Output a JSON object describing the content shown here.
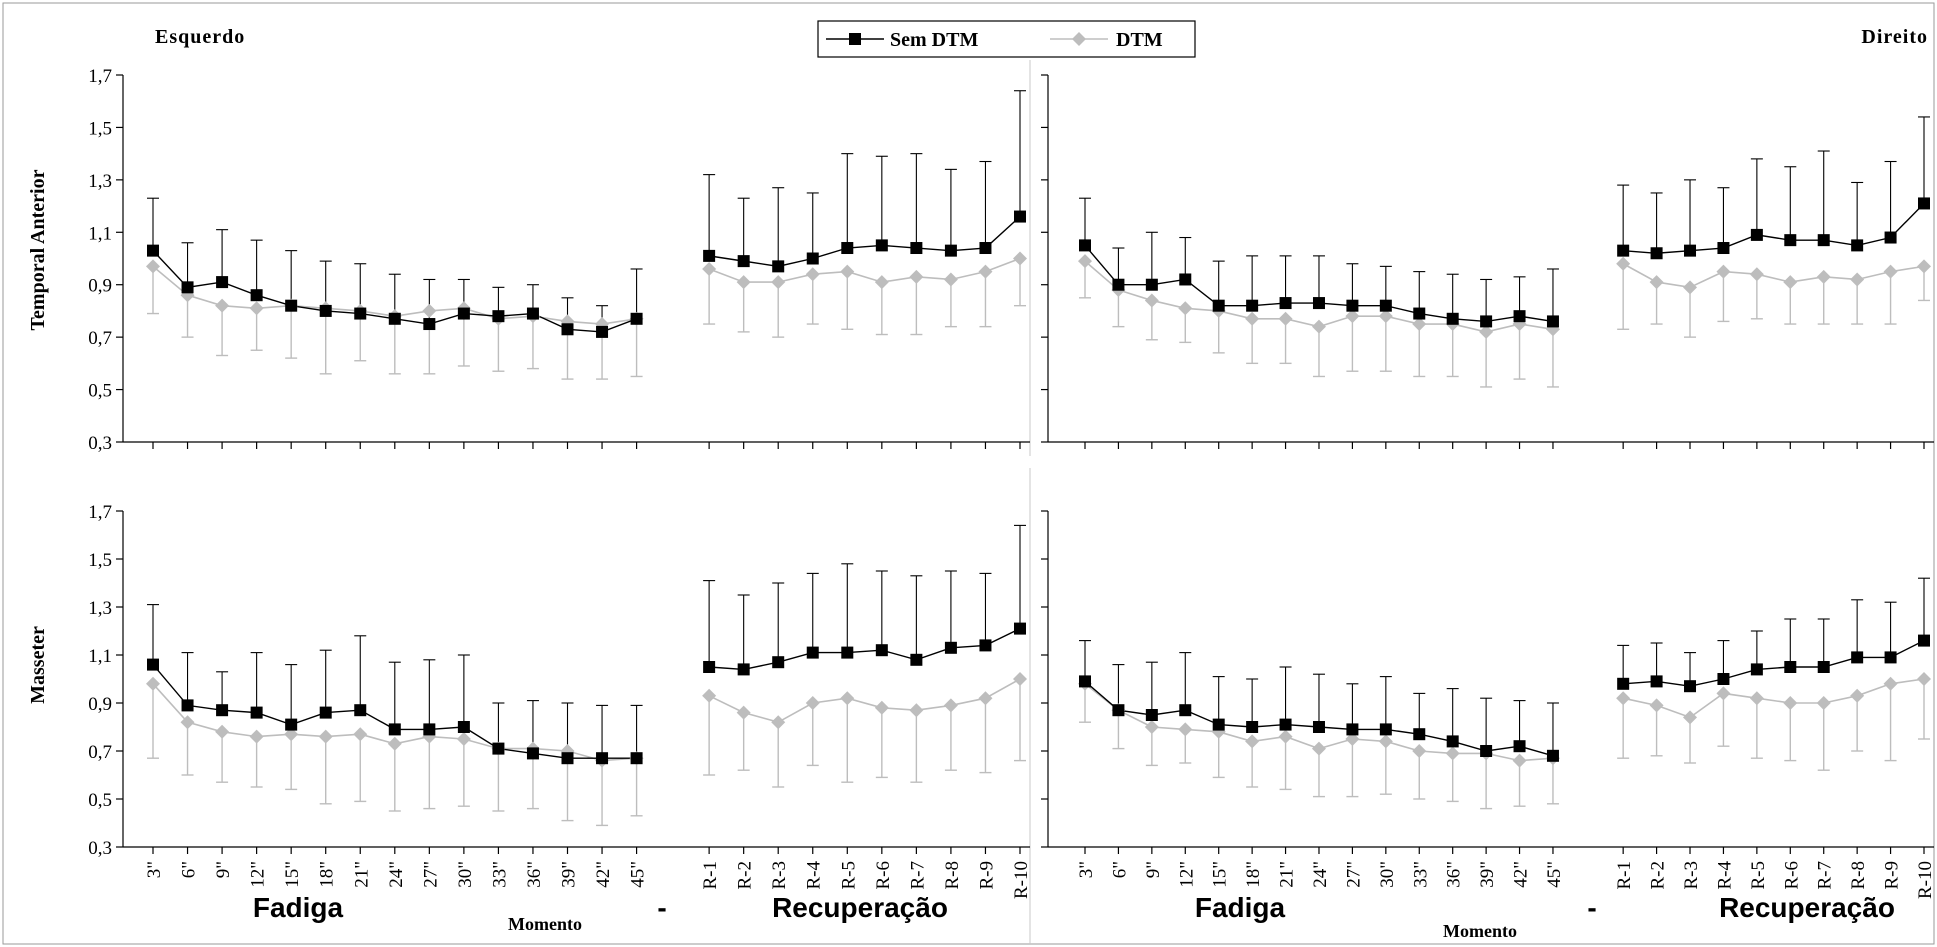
{
  "legend": [
    {
      "label": "Sem DTM"
    },
    {
      "label": "DTM"
    }
  ],
  "side_labels": {
    "left": "Esquerdo",
    "right": "Direito"
  },
  "row_labels": [
    "Temporal Anterior",
    "Masseter"
  ],
  "x_axis_title": "Momento",
  "section_labels": {
    "fatigue": "Fadiga",
    "separator": "-",
    "recovery": "Recuperação"
  },
  "colors": {
    "sem_dtm": "#000000",
    "dtm": "#bdbdbd"
  },
  "chart_data": [
    {
      "type": "line",
      "panel": "Esquerdo - Temporal Anterior",
      "ylabel": "Temporal Anterior",
      "ylim": [
        0.3,
        1.7
      ],
      "yticks": [
        "0,3",
        "0,5",
        "0,7",
        "0,9",
        "1,1",
        "1,3",
        "1,5",
        "1,7"
      ],
      "categories": [
        "3\"",
        "6\"",
        "9\"",
        "12\"",
        "15\"",
        "18\"",
        "21\"",
        "24\"",
        "27\"",
        "30\"",
        "33\"",
        "36\"",
        "39\"",
        "42\"",
        "45\"",
        "R-1",
        "R-2",
        "R-3",
        "R-4",
        "R-5",
        "R-6",
        "R-7",
        "R-8",
        "R-9",
        "R-10"
      ],
      "show_tick_labels": false,
      "series": [
        {
          "name": "Sem DTM",
          "values": [
            1.03,
            0.89,
            0.91,
            0.86,
            0.82,
            0.8,
            0.79,
            0.77,
            0.75,
            0.79,
            0.78,
            0.79,
            0.73,
            0.72,
            0.77,
            1.01,
            0.99,
            0.97,
            1.0,
            1.04,
            1.05,
            1.04,
            1.03,
            1.04,
            1.16
          ],
          "upper": [
            1.23,
            1.06,
            1.11,
            1.07,
            1.03,
            0.99,
            0.98,
            0.94,
            0.92,
            0.92,
            0.89,
            0.9,
            0.85,
            0.82,
            0.96,
            1.32,
            1.23,
            1.27,
            1.25,
            1.4,
            1.39,
            1.4,
            1.34,
            1.37,
            1.64
          ]
        },
        {
          "name": "DTM",
          "values": [
            0.97,
            0.86,
            0.82,
            0.81,
            0.82,
            0.81,
            0.8,
            0.78,
            0.8,
            0.81,
            0.77,
            0.78,
            0.76,
            0.75,
            0.77,
            0.96,
            0.91,
            0.91,
            0.94,
            0.95,
            0.91,
            0.93,
            0.92,
            0.95,
            1.0
          ],
          "lower": [
            0.79,
            0.7,
            0.63,
            0.65,
            0.62,
            0.56,
            0.61,
            0.56,
            0.56,
            0.59,
            0.57,
            0.58,
            0.54,
            0.54,
            0.55,
            0.75,
            0.72,
            0.7,
            0.75,
            0.73,
            0.71,
            0.71,
            0.74,
            0.74,
            0.82
          ]
        }
      ]
    },
    {
      "type": "line",
      "panel": "Direito - Temporal Anterior",
      "ylim": [
        0.3,
        1.7
      ],
      "categories": [
        "3\"",
        "6\"",
        "9\"",
        "12\"",
        "15\"",
        "18\"",
        "21\"",
        "24\"",
        "27\"",
        "30\"",
        "33\"",
        "36\"",
        "39\"",
        "42\"",
        "45\"",
        "R-1",
        "R-2",
        "R-3",
        "R-4",
        "R-5",
        "R-6",
        "R-7",
        "R-8",
        "R-9",
        "R-10"
      ],
      "show_tick_labels": false,
      "series": [
        {
          "name": "Sem DTM",
          "values": [
            1.05,
            0.9,
            0.9,
            0.92,
            0.82,
            0.82,
            0.83,
            0.83,
            0.82,
            0.82,
            0.79,
            0.77,
            0.76,
            0.78,
            0.76,
            1.03,
            1.02,
            1.03,
            1.04,
            1.09,
            1.07,
            1.07,
            1.05,
            1.08,
            1.21
          ],
          "upper": [
            1.23,
            1.04,
            1.1,
            1.08,
            0.99,
            1.01,
            1.01,
            1.01,
            0.98,
            0.97,
            0.95,
            0.94,
            0.92,
            0.93,
            0.96,
            1.28,
            1.25,
            1.3,
            1.27,
            1.38,
            1.35,
            1.41,
            1.29,
            1.37,
            1.54
          ]
        },
        {
          "name": "DTM",
          "values": [
            0.99,
            0.88,
            0.84,
            0.81,
            0.8,
            0.77,
            0.77,
            0.74,
            0.78,
            0.78,
            0.75,
            0.75,
            0.72,
            0.75,
            0.73,
            0.98,
            0.91,
            0.89,
            0.95,
            0.94,
            0.91,
            0.93,
            0.92,
            0.95,
            0.97
          ],
          "lower": [
            0.85,
            0.74,
            0.69,
            0.68,
            0.64,
            0.6,
            0.6,
            0.55,
            0.57,
            0.57,
            0.55,
            0.55,
            0.51,
            0.54,
            0.51,
            0.73,
            0.75,
            0.7,
            0.76,
            0.77,
            0.75,
            0.75,
            0.75,
            0.75,
            0.84
          ]
        }
      ]
    },
    {
      "type": "line",
      "panel": "Esquerdo - Masseter",
      "ylabel": "Masseter",
      "ylim": [
        0.3,
        1.7
      ],
      "yticks": [
        "0,3",
        "0,5",
        "0,7",
        "0,9",
        "1,1",
        "1,3",
        "1,5",
        "1,7"
      ],
      "categories": [
        "3\"",
        "6\"",
        "9\"",
        "12\"",
        "15\"",
        "18\"",
        "21\"",
        "24\"",
        "27\"",
        "30\"",
        "33\"",
        "36\"",
        "39\"",
        "42\"",
        "45\"",
        "R-1",
        "R-2",
        "R-3",
        "R-4",
        "R-5",
        "R-6",
        "R-7",
        "R-8",
        "R-9",
        "R-10"
      ],
      "show_tick_labels": true,
      "series": [
        {
          "name": "Sem DTM",
          "values": [
            1.06,
            0.89,
            0.87,
            0.86,
            0.81,
            0.86,
            0.87,
            0.79,
            0.79,
            0.8,
            0.71,
            0.69,
            0.67,
            0.67,
            0.67,
            1.05,
            1.04,
            1.07,
            1.11,
            1.11,
            1.12,
            1.08,
            1.13,
            1.14,
            1.21
          ],
          "upper": [
            1.31,
            1.11,
            1.03,
            1.11,
            1.06,
            1.12,
            1.18,
            1.07,
            1.08,
            1.1,
            0.9,
            0.91,
            0.9,
            0.89,
            0.89,
            1.41,
            1.35,
            1.4,
            1.44,
            1.48,
            1.45,
            1.43,
            1.45,
            1.44,
            1.64
          ]
        },
        {
          "name": "DTM",
          "values": [
            0.98,
            0.82,
            0.78,
            0.76,
            0.77,
            0.76,
            0.77,
            0.73,
            0.76,
            0.75,
            0.71,
            0.71,
            0.7,
            0.66,
            0.67,
            0.93,
            0.86,
            0.82,
            0.9,
            0.92,
            0.88,
            0.87,
            0.89,
            0.92,
            1.0
          ],
          "lower": [
            0.67,
            0.6,
            0.57,
            0.55,
            0.54,
            0.48,
            0.49,
            0.45,
            0.46,
            0.47,
            0.45,
            0.46,
            0.41,
            0.39,
            0.43,
            0.6,
            0.62,
            0.55,
            0.64,
            0.57,
            0.59,
            0.57,
            0.62,
            0.61,
            0.66
          ]
        }
      ]
    },
    {
      "type": "line",
      "panel": "Direito - Masseter",
      "ylim": [
        0.3,
        1.7
      ],
      "categories": [
        "3\"",
        "6\"",
        "9\"",
        "12\"",
        "15\"",
        "18\"",
        "21\"",
        "24\"",
        "27\"",
        "30\"",
        "33\"",
        "36\"",
        "39\"",
        "42\"",
        "45\"",
        "R-1",
        "R-2",
        "R-3",
        "R-4",
        "R-5",
        "R-6",
        "R-7",
        "R-8",
        "R-9",
        "R-10"
      ],
      "show_tick_labels": true,
      "series": [
        {
          "name": "Sem DTM",
          "values": [
            0.99,
            0.87,
            0.85,
            0.87,
            0.81,
            0.8,
            0.81,
            0.8,
            0.79,
            0.79,
            0.77,
            0.74,
            0.7,
            0.72,
            0.68,
            0.98,
            0.99,
            0.97,
            1.0,
            1.04,
            1.05,
            1.05,
            1.09,
            1.09,
            1.16
          ],
          "upper": [
            1.16,
            1.06,
            1.07,
            1.11,
            1.01,
            1.0,
            1.05,
            1.02,
            0.98,
            1.01,
            0.94,
            0.96,
            0.92,
            0.91,
            0.9,
            1.14,
            1.15,
            1.11,
            1.16,
            1.2,
            1.25,
            1.25,
            1.33,
            1.32,
            1.42
          ]
        },
        {
          "name": "DTM",
          "values": [
            0.98,
            0.87,
            0.8,
            0.79,
            0.78,
            0.74,
            0.76,
            0.71,
            0.75,
            0.74,
            0.7,
            0.69,
            0.69,
            0.66,
            0.67,
            0.92,
            0.89,
            0.84,
            0.94,
            0.92,
            0.9,
            0.9,
            0.93,
            0.98,
            1.0
          ],
          "lower": [
            0.82,
            0.71,
            0.64,
            0.65,
            0.59,
            0.55,
            0.54,
            0.51,
            0.51,
            0.52,
            0.5,
            0.49,
            0.46,
            0.47,
            0.48,
            0.67,
            0.68,
            0.65,
            0.72,
            0.67,
            0.66,
            0.62,
            0.7,
            0.66,
            0.75
          ]
        }
      ]
    }
  ]
}
